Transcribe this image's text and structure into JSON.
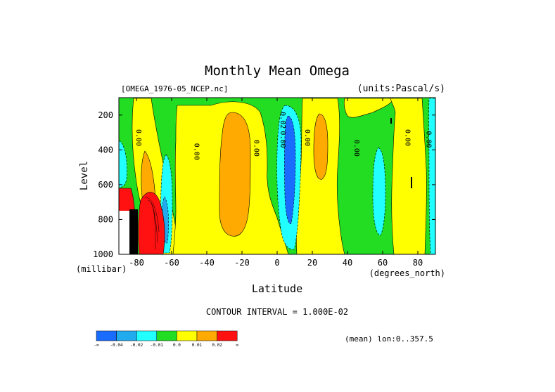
{
  "chart_data": {
    "type": "heatmap",
    "title": "Monthly Mean Omega",
    "file_label": "[OMEGA_1976-05_NCEP.nc]",
    "units_label": "(units:Pascal/s)",
    "xlabel": "Latitude",
    "x_units": "(degrees_north)",
    "ylabel": "Level",
    "y_units": "(millibar)",
    "x_ticks": [
      -80,
      -60,
      -40,
      -20,
      0,
      20,
      40,
      60,
      80
    ],
    "y_ticks": [
      200,
      400,
      600,
      800,
      1000
    ],
    "xlim": [
      -90,
      90
    ],
    "ylim": [
      1000,
      100
    ],
    "contour_interval": "CONTOUR INTERVAL = 1.000E-02",
    "footer_note": "(mean) lon:0..357.5",
    "colorbar": {
      "labels": [
        "-∞",
        "-0.04",
        "-0.02",
        "-0.01",
        "0.0",
        "0.01",
        "0.02",
        "∞"
      ],
      "colors": [
        "#1a6cff",
        "#22aaee",
        "#22ffff",
        "#22dd22",
        "#ffff00",
        "#ffaa00",
        "#ff1111"
      ]
    },
    "contour_labels": [
      {
        "text": "0.00",
        "lat": -80,
        "lev": 330
      },
      {
        "text": "0.00",
        "lat": -47,
        "lev": 410
      },
      {
        "text": "0.00",
        "lat": -13,
        "lev": 390
      },
      {
        "text": "0.02",
        "lat": 2,
        "lev": 230
      },
      {
        "text": "0.00",
        "lat": 2,
        "lev": 340
      },
      {
        "text": "0.00",
        "lat": 16,
        "lev": 330
      },
      {
        "text": "0.00",
        "lat": 44,
        "lev": 390
      },
      {
        "text": "0.00",
        "lat": 73,
        "lev": 330
      },
      {
        "text": "0.00",
        "lat": 85,
        "lev": 340
      }
    ]
  }
}
